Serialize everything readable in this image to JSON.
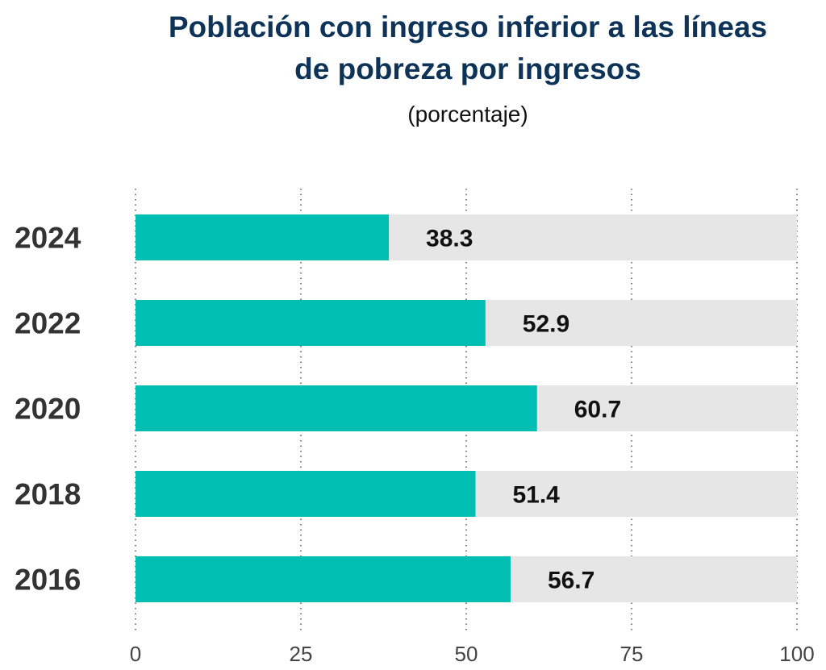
{
  "chart_data": {
    "type": "bar",
    "orientation": "horizontal",
    "title_lines": [
      "Población con ingreso inferior a las líneas",
      "de pobreza por ingresos"
    ],
    "title": "Población con ingreso inferior a las líneas de pobreza por ingresos",
    "subtitle": "(porcentaje)",
    "categories": [
      "2024",
      "2022",
      "2020",
      "2018",
      "2016"
    ],
    "values": [
      38.3,
      52.9,
      60.7,
      51.4,
      56.7
    ],
    "value_labels": [
      "38.3",
      "52.9",
      "60.7",
      "51.4",
      "56.7"
    ],
    "xlabel": "",
    "ylabel": "",
    "xlim": [
      0,
      100
    ],
    "xticks": [
      0,
      25,
      50,
      75,
      100
    ],
    "xtick_labels": [
      "0",
      "25",
      "50",
      "75",
      "100"
    ],
    "grid": "dotted vertical",
    "legend": "none",
    "colors": {
      "bar": "#00bfb2",
      "track": "#e6e6e6",
      "title": "#0e3358",
      "category_label": "#333333",
      "value_label": "#111111",
      "grid": "#555555"
    }
  }
}
